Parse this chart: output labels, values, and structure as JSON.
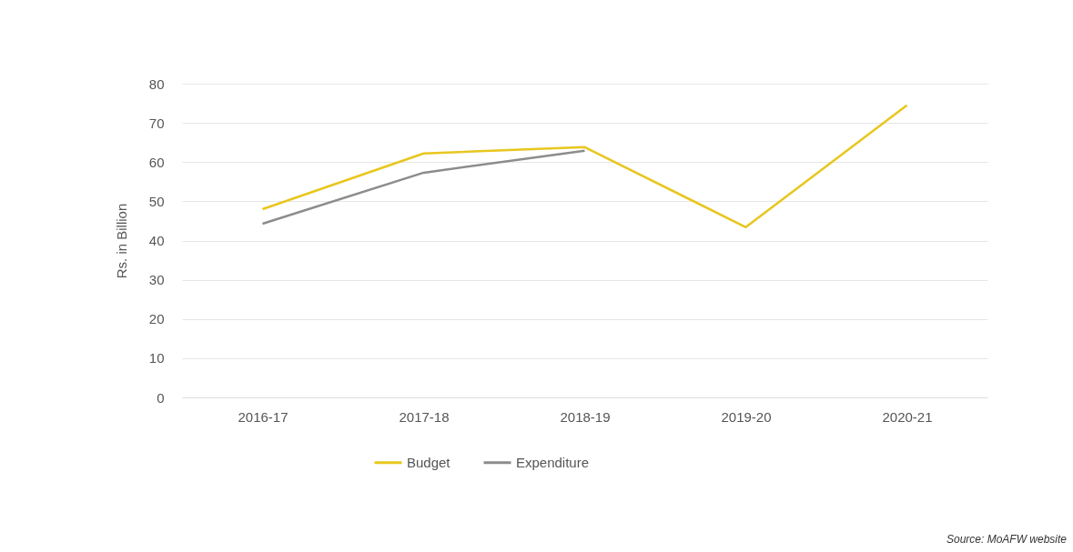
{
  "chart_data": {
    "type": "line",
    "ylabel": "Rs. in Billion",
    "categories": [
      "2016-17",
      "2017-18",
      "2018-19",
      "2019-20",
      "2020-21"
    ],
    "series": [
      {
        "name": "Budget",
        "color": "#e8c61e",
        "values": [
          48,
          62.2,
          63.8,
          43.4,
          74.5
        ]
      },
      {
        "name": "Expenditure",
        "color": "#8c8c8c",
        "values": [
          44.3,
          57.3,
          62.9,
          null,
          null
        ]
      }
    ],
    "ylim": [
      0,
      80
    ],
    "yticks": [
      0,
      10,
      20,
      30,
      40,
      50,
      60,
      70,
      80
    ],
    "grid": "y",
    "legend": "bottom",
    "annotations": [
      "Source: MoAFW website"
    ]
  }
}
